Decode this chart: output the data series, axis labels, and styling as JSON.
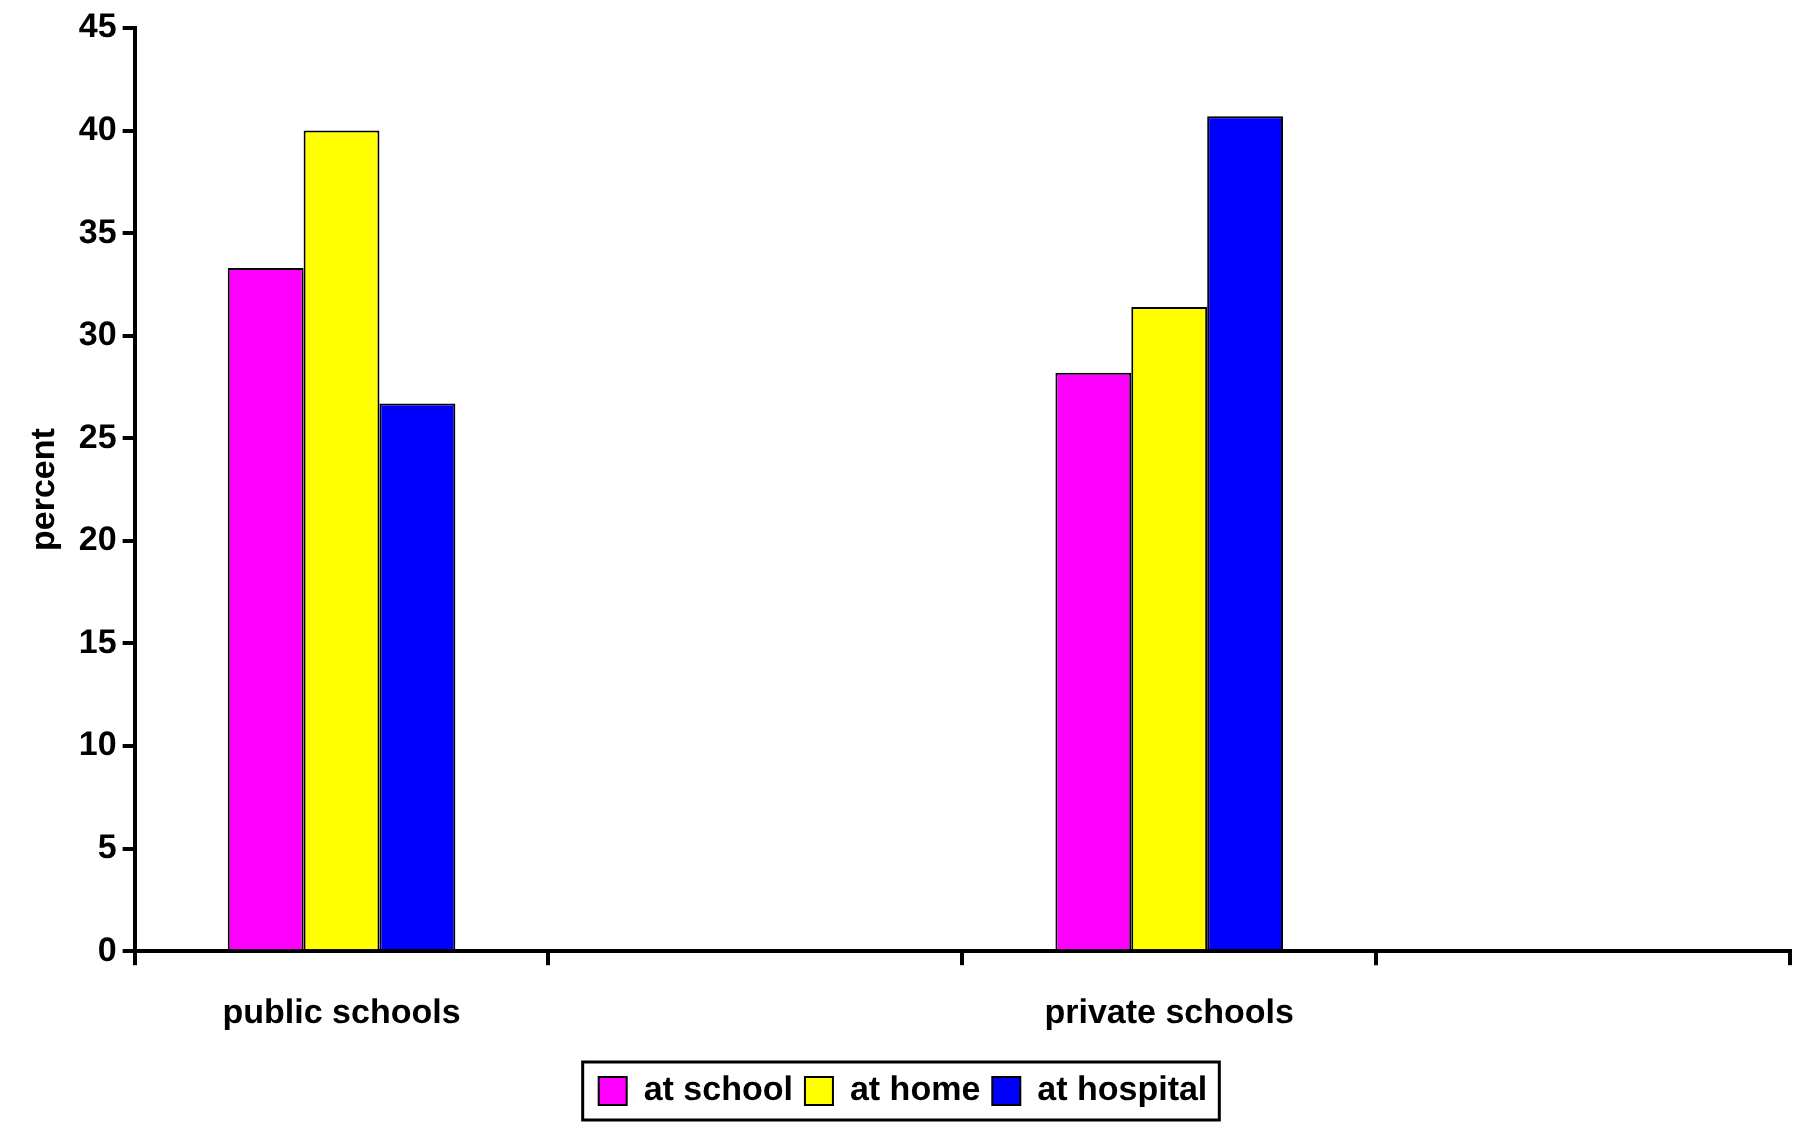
{
  "chart_data": {
    "type": "bar",
    "ylabel": "percent",
    "categories": [
      "public schools",
      null,
      "private schools",
      null
    ],
    "series": [
      {
        "name": "at school",
        "color": "#ff00ff",
        "values": [
          33.3,
          null,
          28.2,
          null
        ]
      },
      {
        "name": "at home",
        "color": "#ffff00",
        "values": [
          40,
          null,
          31.4,
          null
        ]
      },
      {
        "name": "at hospital",
        "color": "#0000ff",
        "values": [
          26.7,
          null,
          40.7,
          null
        ]
      }
    ],
    "ylim": [
      0,
      45
    ],
    "yticks": [
      0,
      5,
      10,
      15,
      20,
      25,
      30,
      35,
      40,
      45
    ],
    "grid": false,
    "legend": "bottom"
  }
}
